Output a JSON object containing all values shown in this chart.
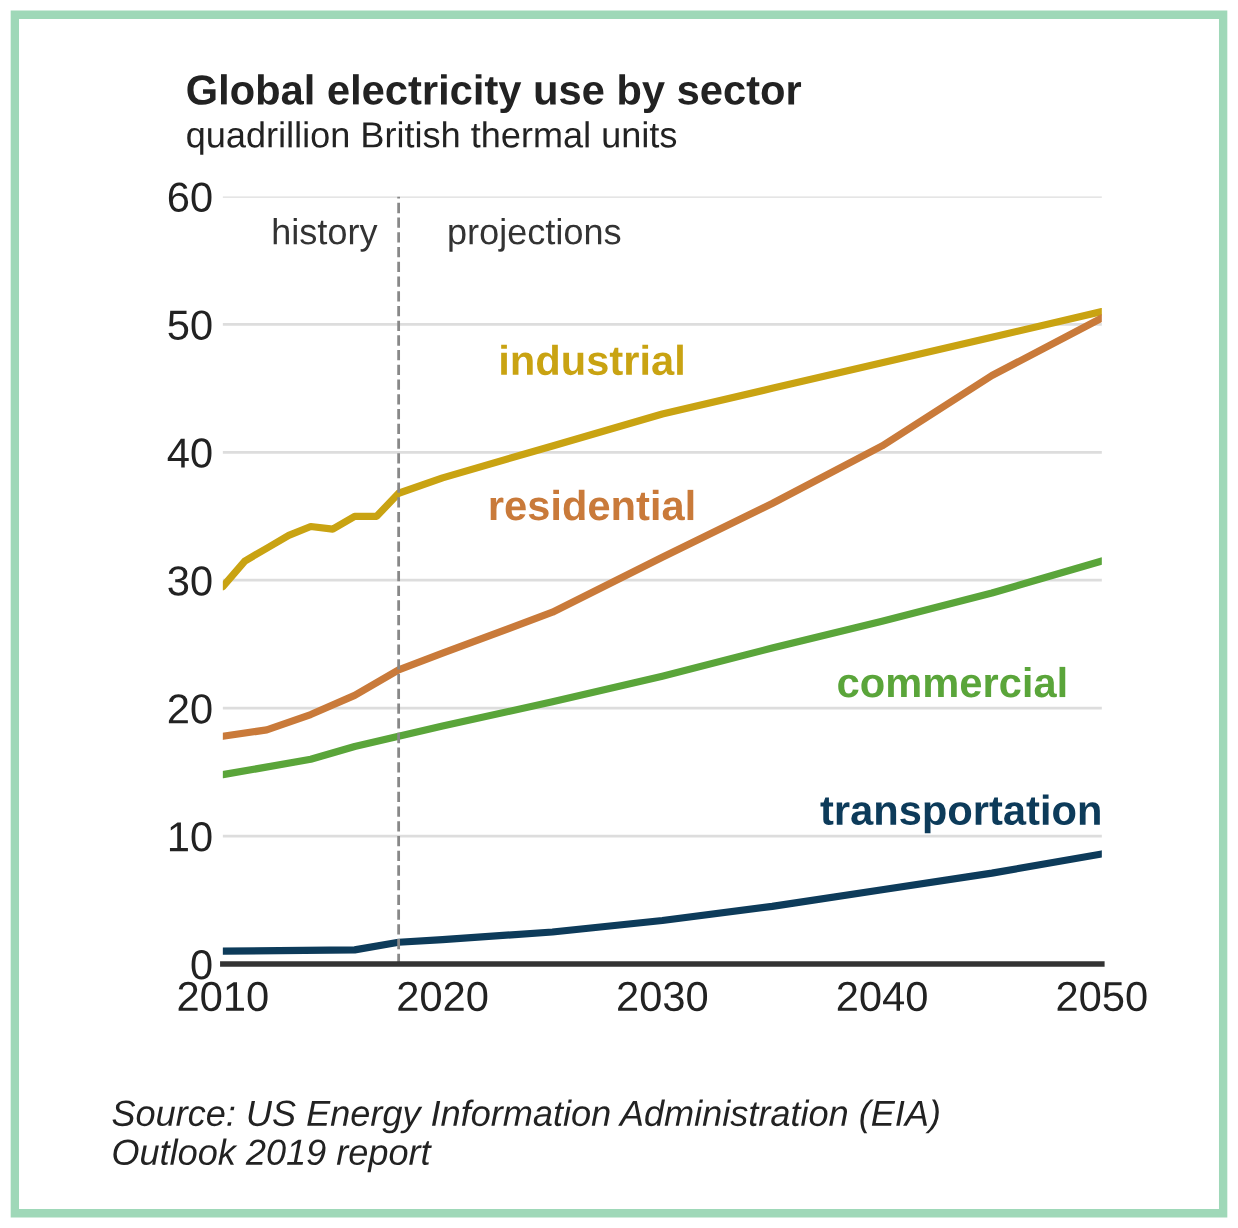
{
  "chart_data": {
    "type": "line",
    "title": "Global electricity use by sector",
    "subtitle": "quadrillion British thermal units",
    "series": [
      {
        "name": "industrial",
        "color": "#c9a312",
        "x": [
          2010,
          2011,
          2012,
          2013,
          2014,
          2015,
          2016,
          2017,
          2018,
          2020,
          2025,
          2030,
          2035,
          2040,
          2045,
          2050
        ],
        "values": [
          29.5,
          31.5,
          32.5,
          33.5,
          34.2,
          34,
          35,
          35,
          36.8,
          38,
          40.5,
          43,
          45,
          47,
          49,
          51
        ]
      },
      {
        "name": "residential",
        "color": "#c97a3a",
        "x": [
          2010,
          2012,
          2014,
          2016,
          2018,
          2020,
          2025,
          2030,
          2035,
          2040,
          2045,
          2050
        ],
        "values": [
          17.8,
          18.3,
          19.5,
          21,
          23,
          24.3,
          27.5,
          31.8,
          36,
          40.5,
          46,
          50.5
        ]
      },
      {
        "name": "commercial",
        "color": "#5aa53a",
        "x": [
          2010,
          2014,
          2016,
          2018,
          2020,
          2025,
          2030,
          2035,
          2040,
          2045,
          2050
        ],
        "values": [
          14.8,
          16,
          17,
          17.8,
          18.6,
          20.5,
          22.5,
          24.7,
          26.8,
          29,
          31.5
        ]
      },
      {
        "name": "transportation",
        "color": "#0d3b5a",
        "x": [
          2010,
          2016,
          2018,
          2020,
          2025,
          2030,
          2035,
          2040,
          2045,
          2050
        ],
        "values": [
          1,
          1.1,
          1.7,
          1.9,
          2.5,
          3.4,
          4.5,
          5.8,
          7.1,
          8.6
        ]
      }
    ],
    "xlim": [
      2010,
      2050
    ],
    "xticks": [
      2010,
      2020,
      2030,
      2040,
      2050
    ],
    "ylim": [
      0,
      60
    ],
    "yticks": [
      0,
      10,
      20,
      30,
      40,
      50,
      60
    ],
    "grid": "y",
    "legend": false,
    "ref_lines": [
      {
        "axis": "x",
        "value": 2018,
        "color": "#888888",
        "line_style": "dashed"
      }
    ],
    "annotations": [
      "history",
      "projections",
      "Source: US Energy Information Administration (EIA)\nOutlook 2019 report"
    ]
  }
}
